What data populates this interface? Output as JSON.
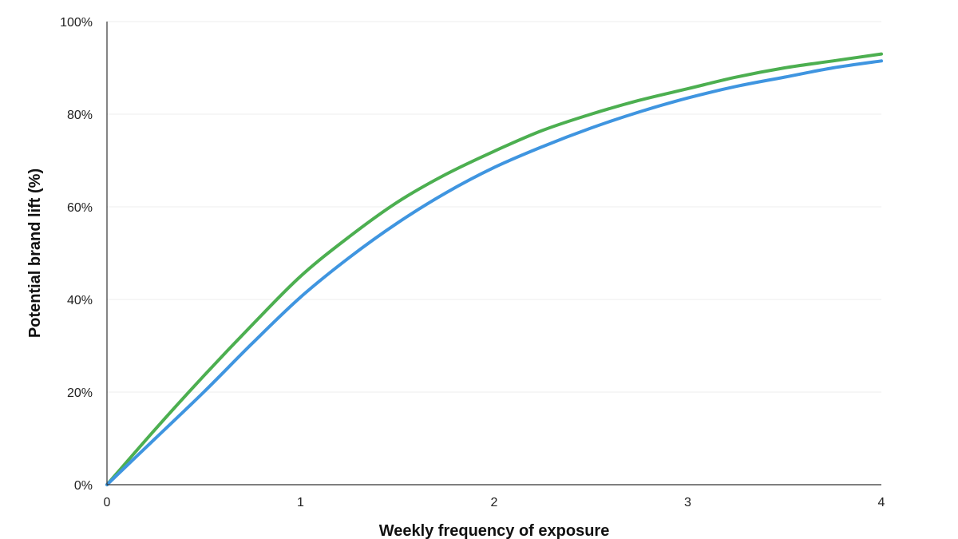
{
  "chart_data": {
    "type": "line",
    "title": "",
    "xlabel": "Weekly frequency of exposure",
    "ylabel": "Potential brand lift (%)",
    "xlim": [
      0,
      4
    ],
    "ylim": [
      0,
      100
    ],
    "x_ticks": [
      {
        "value": 0,
        "label": "0"
      },
      {
        "value": 1,
        "label": "1"
      },
      {
        "value": 2,
        "label": "2"
      },
      {
        "value": 3,
        "label": "3"
      },
      {
        "value": 4,
        "label": "4"
      }
    ],
    "y_ticks": [
      {
        "value": 0,
        "label": "0%"
      },
      {
        "value": 20,
        "label": "20%"
      },
      {
        "value": 40,
        "label": "40%"
      },
      {
        "value": 60,
        "label": "60%"
      },
      {
        "value": 80,
        "label": "80%"
      },
      {
        "value": 100,
        "label": "100%"
      }
    ],
    "grid": true,
    "legend": "none",
    "series": [
      {
        "name": "green",
        "color": "#4caf50",
        "points": [
          [
            0,
            0
          ],
          [
            0.25,
            12
          ],
          [
            0.5,
            23.5
          ],
          [
            0.75,
            34.5
          ],
          [
            1,
            45
          ],
          [
            1.25,
            53.5
          ],
          [
            1.5,
            61
          ],
          [
            1.75,
            67
          ],
          [
            2,
            72
          ],
          [
            2.25,
            76.5
          ],
          [
            2.5,
            80
          ],
          [
            2.75,
            83
          ],
          [
            3,
            85.5
          ],
          [
            3.25,
            88
          ],
          [
            3.5,
            90
          ],
          [
            3.75,
            91.5
          ],
          [
            4,
            93
          ]
        ]
      },
      {
        "name": "blue",
        "color": "#3f95e0",
        "points": [
          [
            0,
            0
          ],
          [
            0.25,
            10
          ],
          [
            0.5,
            20
          ],
          [
            0.75,
            30.5
          ],
          [
            1,
            40.5
          ],
          [
            1.25,
            49
          ],
          [
            1.5,
            56.5
          ],
          [
            1.75,
            63
          ],
          [
            2,
            68.5
          ],
          [
            2.25,
            73
          ],
          [
            2.5,
            77
          ],
          [
            2.75,
            80.5
          ],
          [
            3,
            83.5
          ],
          [
            3.25,
            86
          ],
          [
            3.5,
            88
          ],
          [
            3.75,
            90
          ],
          [
            4,
            91.5
          ]
        ]
      }
    ]
  }
}
